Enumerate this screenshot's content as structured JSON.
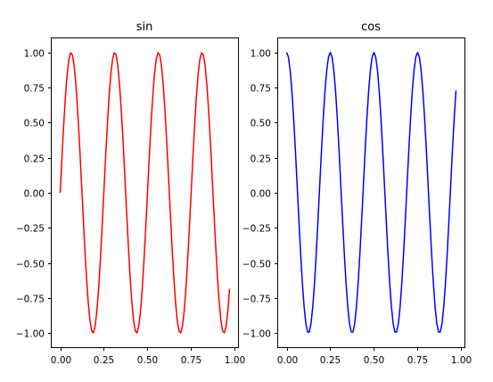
{
  "chart_data": [
    {
      "type": "line",
      "title": "sin",
      "function": "sin",
      "frequency": 4,
      "x_range": [
        0,
        0.97
      ],
      "samples": 98,
      "xlim": [
        -0.0485,
        1.0185
      ],
      "ylim": [
        -1.1,
        1.1
      ],
      "xticks": [
        0.0,
        0.25,
        0.5,
        0.75,
        1.0
      ],
      "xtick_labels": [
        "0.00",
        "0.25",
        "0.50",
        "0.75",
        "1.00"
      ],
      "yticks": [
        1.0,
        0.75,
        0.5,
        0.25,
        0.0,
        -0.25,
        -0.5,
        -0.75,
        -1.0
      ],
      "ytick_labels": [
        "1.00",
        "0.75",
        "0.50",
        "0.25",
        "0.00",
        "−0.25",
        "−0.50",
        "−0.75",
        "−1.00"
      ],
      "xlabel": "",
      "ylabel": "",
      "grid": false,
      "legend": "none",
      "color": "#ff0000"
    },
    {
      "type": "line",
      "title": "cos",
      "function": "cos",
      "frequency": 4,
      "x_range": [
        0,
        0.97
      ],
      "samples": 98,
      "xlim": [
        -0.0485,
        1.0185
      ],
      "ylim": [
        -1.1,
        1.1
      ],
      "xticks": [
        0.0,
        0.25,
        0.5,
        0.75,
        1.0
      ],
      "xtick_labels": [
        "0.00",
        "0.25",
        "0.50",
        "0.75",
        "1.00"
      ],
      "yticks": [
        1.0,
        0.75,
        0.5,
        0.25,
        0.0,
        -0.25,
        -0.5,
        -0.75,
        -1.0
      ],
      "ytick_labels": [
        "1.00",
        "0.75",
        "0.50",
        "0.25",
        "0.00",
        "−0.25",
        "−0.50",
        "−0.75",
        "−1.00"
      ],
      "xlabel": "",
      "ylabel": "",
      "grid": false,
      "legend": "none",
      "color": "#0000ff"
    }
  ]
}
